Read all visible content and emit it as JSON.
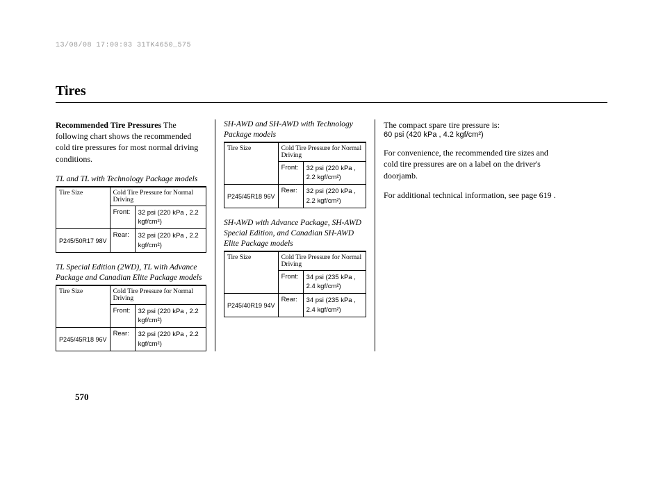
{
  "header_stamp": "13/08/08 17:00:03 31TK4650_575",
  "page_title": "Tires",
  "page_number": "570",
  "col1": {
    "heading": "Recommended Tire Pressures",
    "intro": "The following chart shows the recommended cold tire pressures for most normal driving conditions.",
    "table1": {
      "caption": "TL and TL with Technology Package models",
      "size_header": "Tire Size",
      "pressure_header": "Cold Tire Pressure for Normal Driving",
      "tire_size": "P245/50R17 98V",
      "front_label": "Front:",
      "front_value": "32 psi (220 kPa , 2.2 kgf/cm²)",
      "rear_label": "Rear:",
      "rear_value": "32 psi (220 kPa , 2.2 kgf/cm²)"
    },
    "table2": {
      "caption": "TL Special Edition (2WD), TL with Advance Package and Canadian Elite Package models",
      "size_header": "Tire Size",
      "pressure_header": "Cold Tire Pressure for Normal Driving",
      "tire_size": "P245/45R18 96V",
      "front_label": "Front:",
      "front_value": "32 psi (220 kPa , 2.2 kgf/cm²)",
      "rear_label": "Rear:",
      "rear_value": "32 psi (220 kPa , 2.2 kgf/cm²)"
    }
  },
  "col2": {
    "table1": {
      "caption": "SH-AWD and SH-AWD with Technology Package models",
      "size_header": "Tire Size",
      "pressure_header": "Cold Tire Pressure for Normal Driving",
      "tire_size": "P245/45R18 96V",
      "front_label": "Front:",
      "front_value": "32 psi (220 kPa , 2.2 kgf/cm²)",
      "rear_label": "Rear:",
      "rear_value": "32 psi (220 kPa , 2.2 kgf/cm²)"
    },
    "table2": {
      "caption": "SH-AWD with Advance Package, SH-AWD Special Edition, and Canadian SH-AWD Elite Package models",
      "size_header": "Tire Size",
      "pressure_header": "Cold Tire Pressure for Normal Driving",
      "tire_size": "P245/40R19 94V",
      "front_label": "Front:",
      "front_value": "34 psi (235 kPa , 2.4 kgf/cm²)",
      "rear_label": "Rear:",
      "rear_value": "34 psi (235 kPa , 2.4 kgf/cm²)"
    }
  },
  "col3": {
    "spare_intro": "The compact spare tire pressure is:",
    "spare_value": "60 psi (420 kPa , 4.2 kgf/cm²)",
    "convenience": "For convenience, the recommended tire sizes and cold tire pressures are on a label on the driver's doorjamb.",
    "additional": "For additional technical information, see page 619 ."
  }
}
